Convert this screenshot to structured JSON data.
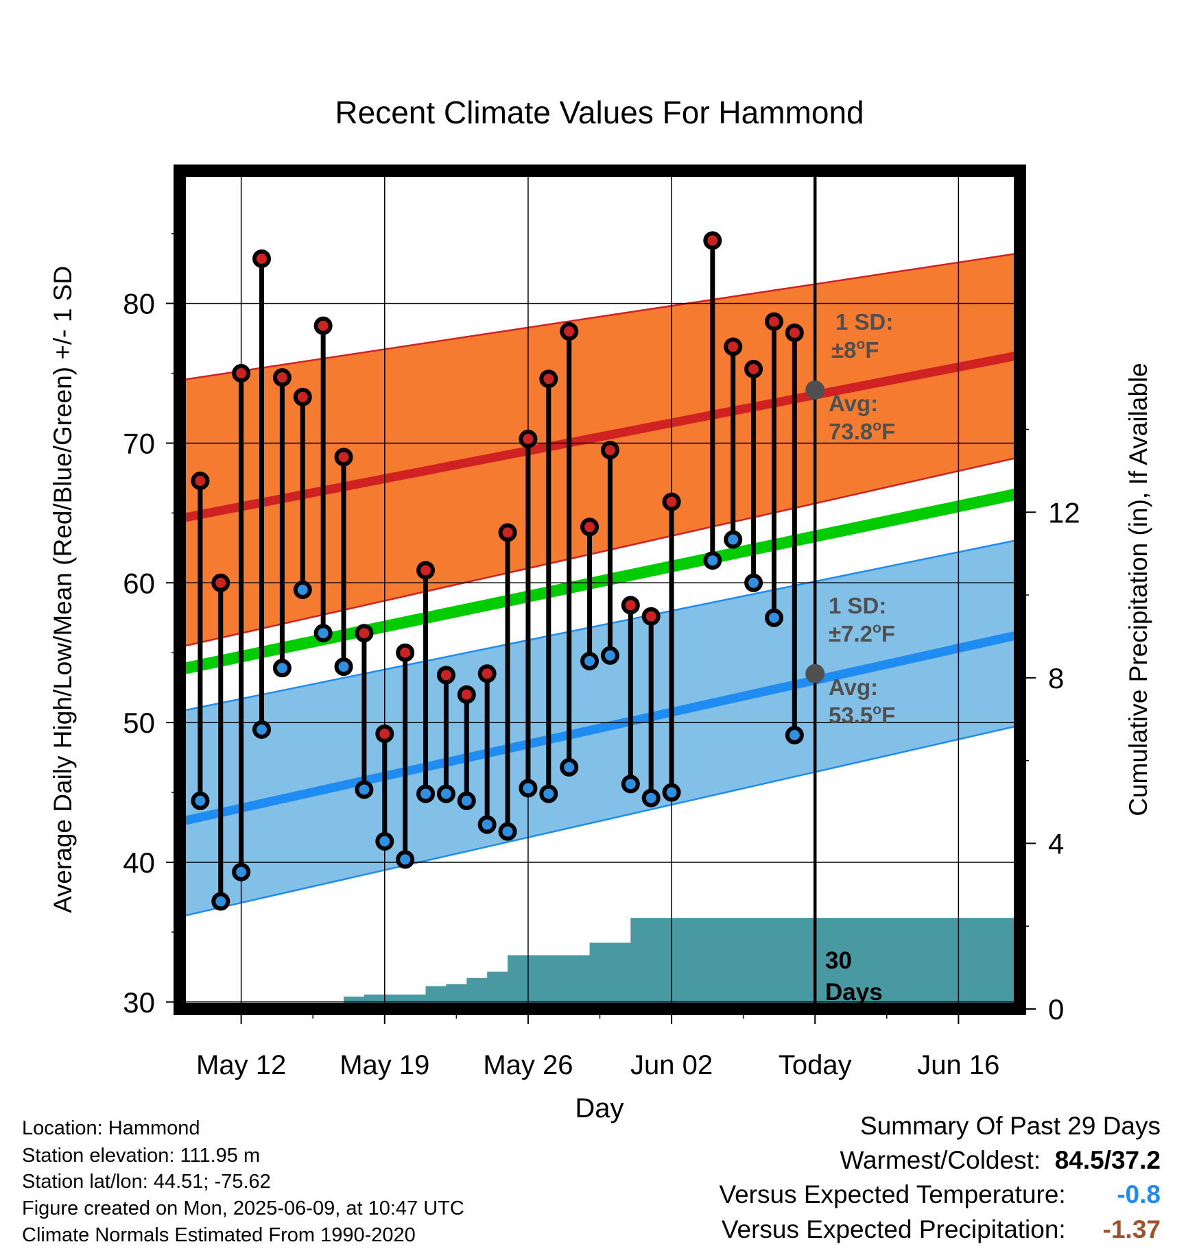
{
  "chart_data": {
    "type": "line",
    "title": "Recent Climate Values For Hammond",
    "xlabel": "Day",
    "ylabel": "Average Daily High/Low/Mean (Red/Blue/Green) +/- 1 SD",
    "y2label": "Cumulative Precipitation (in), If Available",
    "xlim": [
      "2025-05-09",
      "2025-06-19"
    ],
    "ylim": [
      29.5,
      89.5
    ],
    "y2lim": [
      0,
      20.25
    ],
    "yticks": [
      "30",
      "40",
      "50",
      "60",
      "70",
      "80"
    ],
    "y2ticks": [
      "0",
      "4",
      "8",
      "12"
    ],
    "xticks": [
      {
        "date": "2025-05-12",
        "label": "May 12"
      },
      {
        "date": "2025-05-19",
        "label": "May 19"
      },
      {
        "date": "2025-05-26",
        "label": "May 26"
      },
      {
        "date": "2025-06-02",
        "label": "Jun 02"
      },
      {
        "date": "2025-06-09",
        "label": "Today"
      },
      {
        "date": "2025-06-16",
        "label": "Jun 16"
      }
    ],
    "today": "2025-06-09",
    "grid": true,
    "normals": {
      "dates": [
        "2025-05-09",
        "2025-06-19"
      ],
      "high_mean": [
        64.6,
        76.3
      ],
      "high_upper": [
        74.5,
        83.6
      ],
      "high_lower": [
        55.4,
        69.0
      ],
      "low_mean": [
        42.9,
        56.3
      ],
      "low_upper": [
        50.8,
        63.1
      ],
      "low_lower": [
        36.1,
        49.8
      ],
      "daily_mean": [
        53.8,
        66.4
      ]
    },
    "highs": [
      {
        "date": "2025-05-10",
        "value": 67.3
      },
      {
        "date": "2025-05-11",
        "value": 60.0
      },
      {
        "date": "2025-05-12",
        "value": 75.0
      },
      {
        "date": "2025-05-13",
        "value": 83.2
      },
      {
        "date": "2025-05-14",
        "value": 74.7
      },
      {
        "date": "2025-05-15",
        "value": 73.3
      },
      {
        "date": "2025-05-16",
        "value": 78.4
      },
      {
        "date": "2025-05-17",
        "value": 69.0
      },
      {
        "date": "2025-05-18",
        "value": 56.4
      },
      {
        "date": "2025-05-19",
        "value": 49.2
      },
      {
        "date": "2025-05-20",
        "value": 55.0
      },
      {
        "date": "2025-05-21",
        "value": 60.9
      },
      {
        "date": "2025-05-22",
        "value": 53.4
      },
      {
        "date": "2025-05-23",
        "value": 52.0
      },
      {
        "date": "2025-05-24",
        "value": 53.5
      },
      {
        "date": "2025-05-25",
        "value": 63.6
      },
      {
        "date": "2025-05-26",
        "value": 70.3
      },
      {
        "date": "2025-05-27",
        "value": 74.6
      },
      {
        "date": "2025-05-28",
        "value": 78.0
      },
      {
        "date": "2025-05-29",
        "value": 64.0
      },
      {
        "date": "2025-05-30",
        "value": 69.5
      },
      {
        "date": "2025-05-31",
        "value": 58.4
      },
      {
        "date": "2025-06-01",
        "value": 57.6
      },
      {
        "date": "2025-06-02",
        "value": 65.8
      },
      {
        "date": "2025-06-04",
        "value": 84.5
      },
      {
        "date": "2025-06-05",
        "value": 76.9
      },
      {
        "date": "2025-06-06",
        "value": 75.3
      },
      {
        "date": "2025-06-07",
        "value": 78.7
      },
      {
        "date": "2025-06-08",
        "value": 77.9
      }
    ],
    "lows": [
      {
        "date": "2025-05-10",
        "value": 44.4
      },
      {
        "date": "2025-05-11",
        "value": 37.2
      },
      {
        "date": "2025-05-12",
        "value": 39.3
      },
      {
        "date": "2025-05-13",
        "value": 49.5
      },
      {
        "date": "2025-05-14",
        "value": 53.9
      },
      {
        "date": "2025-05-15",
        "value": 59.5
      },
      {
        "date": "2025-05-16",
        "value": 56.4
      },
      {
        "date": "2025-05-17",
        "value": 54.0
      },
      {
        "date": "2025-05-18",
        "value": 45.2
      },
      {
        "date": "2025-05-19",
        "value": 41.5
      },
      {
        "date": "2025-05-20",
        "value": 40.2
      },
      {
        "date": "2025-05-21",
        "value": 44.9
      },
      {
        "date": "2025-05-22",
        "value": 44.9
      },
      {
        "date": "2025-05-23",
        "value": 44.4
      },
      {
        "date": "2025-05-24",
        "value": 42.7
      },
      {
        "date": "2025-05-25",
        "value": 42.2
      },
      {
        "date": "2025-05-26",
        "value": 45.3
      },
      {
        "date": "2025-05-27",
        "value": 44.9
      },
      {
        "date": "2025-05-28",
        "value": 46.8
      },
      {
        "date": "2025-05-29",
        "value": 54.4
      },
      {
        "date": "2025-05-30",
        "value": 54.8
      },
      {
        "date": "2025-05-31",
        "value": 45.6
      },
      {
        "date": "2025-06-01",
        "value": 44.6
      },
      {
        "date": "2025-06-02",
        "value": 45.0
      },
      {
        "date": "2025-06-04",
        "value": 61.6
      },
      {
        "date": "2025-06-05",
        "value": 63.1
      },
      {
        "date": "2025-06-06",
        "value": 60.0
      },
      {
        "date": "2025-06-07",
        "value": 57.5
      },
      {
        "date": "2025-06-08",
        "value": 49.1
      }
    ],
    "precip_cumulative": [
      {
        "date": "2025-05-16",
        "value": 0.0
      },
      {
        "date": "2025-05-17",
        "value": 0.3
      },
      {
        "date": "2025-05-18",
        "value": 0.35
      },
      {
        "date": "2025-05-19",
        "value": 0.35
      },
      {
        "date": "2025-05-20",
        "value": 0.35
      },
      {
        "date": "2025-05-21",
        "value": 0.55
      },
      {
        "date": "2025-05-22",
        "value": 0.6
      },
      {
        "date": "2025-05-23",
        "value": 0.75
      },
      {
        "date": "2025-05-24",
        "value": 0.9
      },
      {
        "date": "2025-05-25",
        "value": 1.3
      },
      {
        "date": "2025-05-26",
        "value": 1.3
      },
      {
        "date": "2025-05-27",
        "value": 1.3
      },
      {
        "date": "2025-05-28",
        "value": 1.3
      },
      {
        "date": "2025-05-29",
        "value": 1.6
      },
      {
        "date": "2025-05-30",
        "value": 1.6
      },
      {
        "date": "2025-05-31",
        "value": 2.2
      },
      {
        "date": "2025-06-01",
        "value": 2.2
      },
      {
        "date": "2025-06-19",
        "value": 2.2
      }
    ],
    "annotations": {
      "high_sd_label": "1 SD:",
      "high_sd_value": "±8",
      "high_avg_label": "Avg:",
      "high_avg_value": "73.8",
      "high_avg_point": 73.8,
      "low_sd_label": "1 SD:",
      "low_sd_value": "±7.2",
      "low_avg_label": "Avg:",
      "low_avg_value": "53.5",
      "low_avg_point": 53.5,
      "degree_mark": "o",
      "unit": "F",
      "precip_window_line1": "30",
      "precip_window_line2": "Days"
    },
    "colors": {
      "high_band": "#f47b30",
      "high_line": "#d02222",
      "low_band": "#82c0e8",
      "low_line": "#1e8cf0",
      "mean_line": "#00cc00",
      "precip": "#4899a2",
      "high_dot": "#cc2222",
      "low_dot": "#2f8fe0",
      "annotation": "#505050"
    }
  },
  "info": {
    "location": "Location: Hammond",
    "elevation": "Station elevation: 111.95 m",
    "latlon": "Station lat/lon: 44.51; -75.62",
    "created": "Figure created on Mon, 2025-06-09, at 10:47 UTC",
    "normals": "Climate Normals Estimated From 1990-2020"
  },
  "summary": {
    "title": "Summary Of Past 29 Days",
    "warmest_label": "Warmest/Coldest:",
    "warmest_value": "84.5/37.2",
    "temp_label": "Versus Expected Temperature:",
    "temp_value": "-0.8",
    "temp_color": "#1e8cf0",
    "precip_label": "Versus Expected Precipitation:",
    "precip_value": "-1.37",
    "precip_color": "#a0522d"
  }
}
